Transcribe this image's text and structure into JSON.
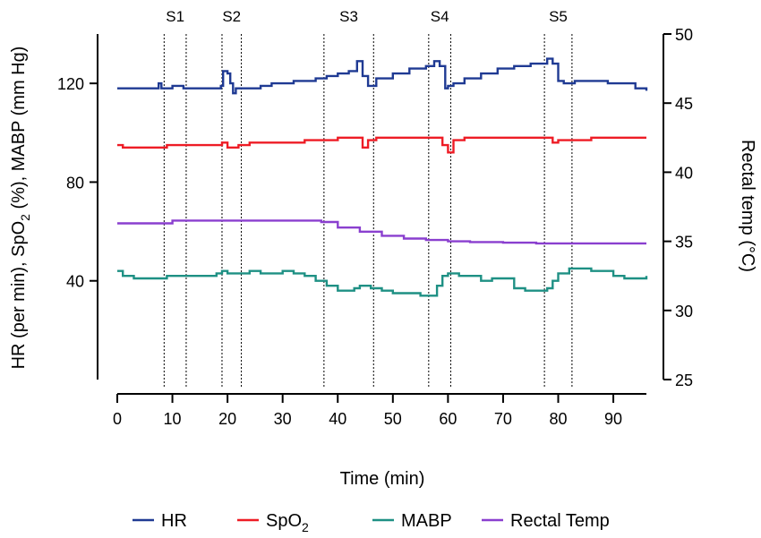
{
  "chart_data": {
    "type": "line",
    "xlabel": "Time (min)",
    "ylabel_left": {
      "pre": "HR (per min), SpO",
      "sub": "2",
      "post": " (%), MABP (mm Hg)"
    },
    "ylabel_right": "Rectal temp (°C)",
    "xlim": [
      0,
      96
    ],
    "ylim_left": [
      0,
      140
    ],
    "ylim_right": [
      25,
      50
    ],
    "x_ticks": [
      "0",
      "10",
      "20",
      "30",
      "40",
      "50",
      "60",
      "70",
      "80",
      "90"
    ],
    "y_ticks_left": [
      "40",
      "80",
      "120"
    ],
    "y_ticks_right": [
      "25",
      "30",
      "35",
      "40",
      "45",
      "50"
    ],
    "stages": [
      {
        "label": "S1",
        "start": 8.5,
        "end": 12.5
      },
      {
        "label": "S2",
        "start": 19,
        "end": 22.5
      },
      {
        "label": "S3",
        "start": 37.5,
        "end": 46.5
      },
      {
        "label": "S4",
        "start": 56.5,
        "end": 60.5
      },
      {
        "label": "S5",
        "start": 77.5,
        "end": 82.5
      }
    ],
    "series": [
      {
        "name": "HR",
        "axis": "left",
        "color": "#1f3a93",
        "x": [
          0,
          2,
          5,
          7,
          7.5,
          8,
          9,
          10,
          12,
          14,
          16,
          18,
          18.8,
          19.2,
          20,
          20.5,
          21,
          21.5,
          22,
          24,
          26,
          28,
          30,
          32,
          34,
          36,
          38,
          40,
          42,
          43.5,
          44.5,
          45.5,
          47,
          50,
          53,
          56,
          57.5,
          58.5,
          59.5,
          60,
          61,
          63,
          66,
          69,
          72,
          75,
          77,
          78,
          79,
          80,
          81,
          83,
          86,
          89,
          92,
          94,
          96
        ],
        "y": [
          118,
          118,
          118,
          118,
          120,
          118,
          118,
          119,
          118,
          118,
          118,
          118,
          119,
          125,
          124,
          120,
          116,
          118,
          118,
          118,
          119,
          120,
          120,
          121,
          121,
          122,
          123,
          124,
          125,
          129,
          123,
          119,
          122,
          124,
          126,
          127,
          129,
          127,
          118,
          119,
          120,
          122,
          124,
          126,
          127,
          128,
          128,
          130,
          128,
          121,
          120,
          121,
          121,
          120,
          120,
          118,
          117
        ]
      },
      {
        "name": "SpO",
        "sub": "2",
        "axis": "left",
        "color": "#ee1c25",
        "x": [
          0,
          1,
          3,
          6,
          9,
          12,
          15,
          18,
          19,
          20,
          22,
          24,
          26,
          28,
          30,
          32,
          34,
          36,
          38,
          40,
          42,
          43.5,
          44.5,
          45.5,
          47,
          50,
          53,
          56,
          58,
          59,
          60,
          61,
          63,
          66,
          69,
          72,
          75,
          78,
          79,
          80,
          83,
          86,
          90,
          93,
          96
        ],
        "y": [
          95,
          94,
          94,
          94,
          95,
          95,
          95,
          95,
          96,
          94,
          95,
          96,
          96,
          96,
          96,
          96,
          97,
          97,
          97,
          98,
          98,
          98,
          94,
          97,
          98,
          98,
          98,
          98,
          98,
          95,
          92,
          97,
          98,
          98,
          98,
          98,
          98,
          98,
          96,
          97,
          97,
          98,
          98,
          98,
          98
        ]
      },
      {
        "name": "MABP",
        "axis": "left",
        "color": "#1e9084",
        "x": [
          0,
          1,
          3,
          6,
          9,
          12,
          15,
          18,
          19,
          20,
          22,
          24,
          26,
          28,
          30,
          32,
          34,
          36,
          38,
          40,
          42,
          43,
          44,
          46,
          48,
          50,
          52,
          55,
          57,
          58,
          59,
          60,
          62,
          64,
          66,
          68,
          70,
          72,
          74,
          76,
          78,
          79,
          80,
          82,
          84,
          86,
          88,
          90,
          92,
          94,
          96
        ],
        "y": [
          44,
          42,
          41,
          41,
          42,
          42,
          42,
          43,
          44,
          43,
          43,
          44,
          43,
          43,
          44,
          43,
          42,
          40,
          38,
          36,
          36,
          37,
          38,
          37,
          36,
          35,
          35,
          34,
          34,
          38,
          42,
          43,
          42,
          42,
          40,
          41,
          41,
          37,
          36,
          36,
          37,
          40,
          43,
          45,
          45,
          44,
          44,
          42,
          41,
          41,
          42
        ]
      },
      {
        "name": "Rectal Temp",
        "axis": "right",
        "color": "#8a3fcf",
        "x": [
          0,
          5,
          10,
          20,
          30,
          37,
          40,
          44,
          48,
          52,
          56,
          60,
          64,
          70,
          76,
          80,
          85,
          90,
          96
        ],
        "y": [
          36.3,
          36.3,
          36.5,
          36.5,
          36.5,
          36.4,
          36,
          35.7,
          35.4,
          35.2,
          35.1,
          35.0,
          34.95,
          34.9,
          34.85,
          34.85,
          34.85,
          34.85,
          34.85
        ]
      }
    ],
    "legend_position": "bottom",
    "grid": false
  }
}
